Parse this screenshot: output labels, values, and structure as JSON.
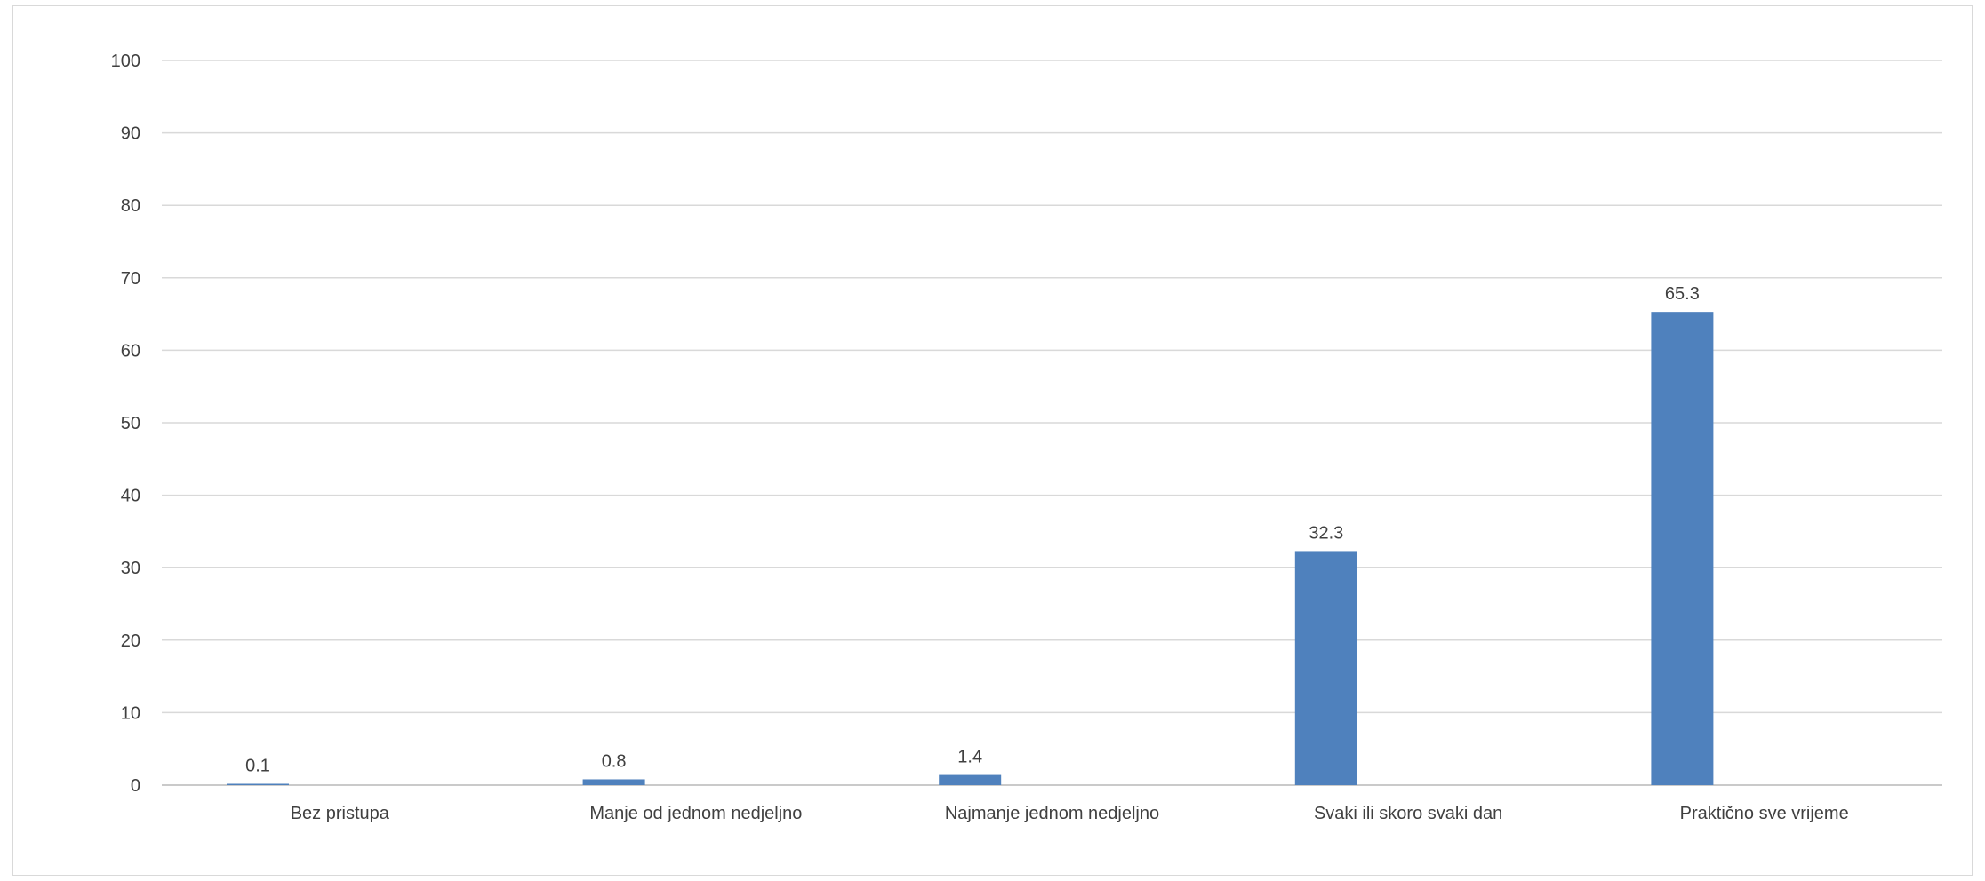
{
  "chart_data": {
    "type": "bar",
    "categories": [
      "Bez pristupa",
      "Manje od jednom nedjeljno",
      "Najmanje jednom nedjeljno",
      "Svaki ili skoro svaki dan",
      "Praktično sve vrijeme"
    ],
    "values": [
      0.1,
      0.8,
      1.4,
      32.3,
      65.3
    ],
    "data_labels": [
      "0.1",
      "0.8",
      "1.4",
      "32.3",
      "65.3"
    ],
    "title": "",
    "xlabel": "",
    "ylabel": "",
    "ylim": [
      0,
      100
    ],
    "yticks": [
      0,
      10,
      20,
      30,
      40,
      50,
      60,
      70,
      80,
      90,
      100
    ],
    "grid": "horizontal",
    "legend": "none",
    "bar_color": "#4f81bd",
    "grid_color": "#d9d9d9"
  }
}
